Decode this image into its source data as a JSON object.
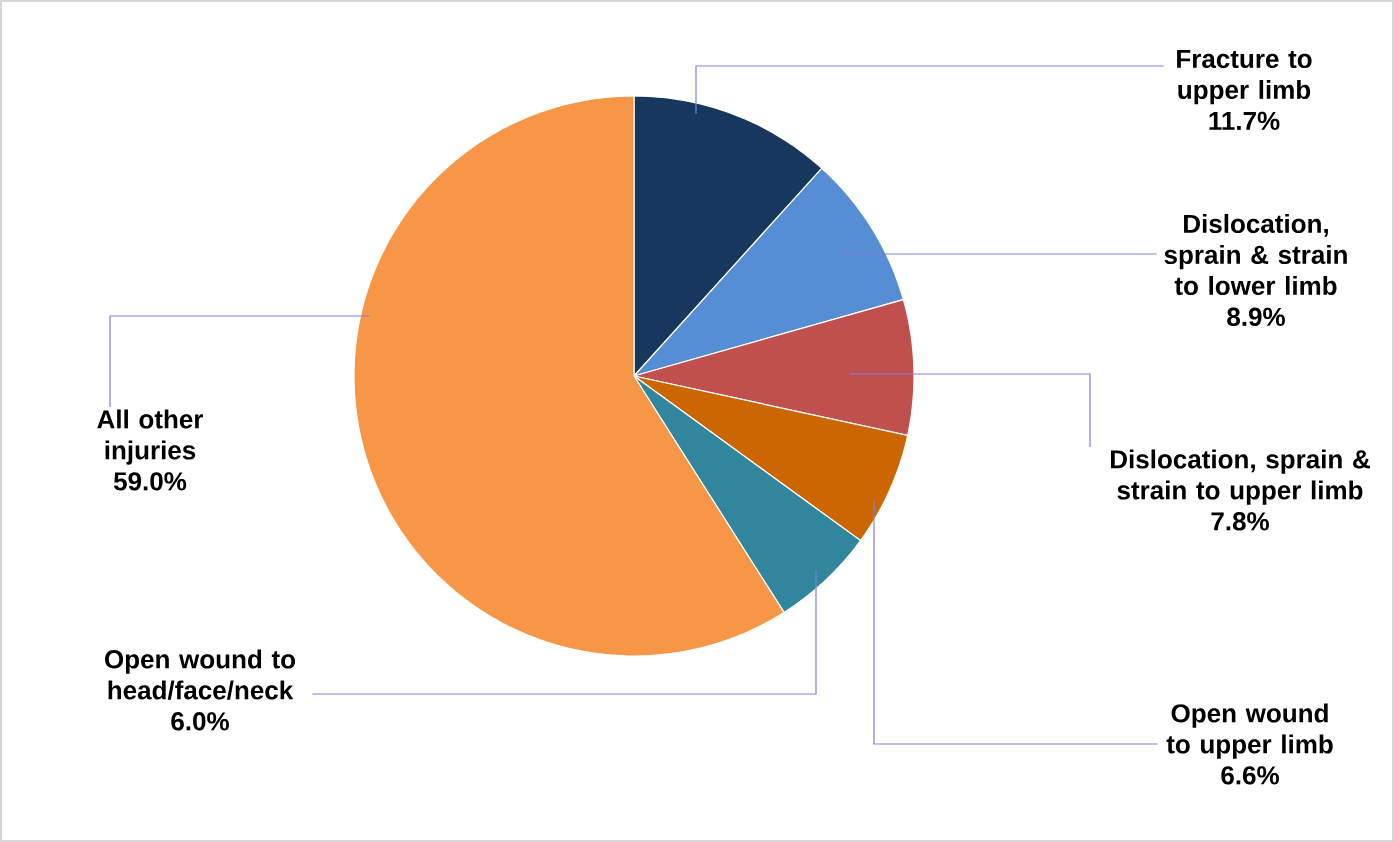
{
  "chart_data": {
    "type": "pie",
    "categories": [
      "Fracture to upper limb",
      "Dislocation, sprain & strain to lower limb",
      "Dislocation, sprain & strain to upper limb",
      "Open wound to upper limb",
      "Open wound to head/face/neck",
      "All other injuries"
    ],
    "values": [
      11.7,
      8.9,
      7.8,
      6.6,
      6.0,
      59.0
    ],
    "colors": [
      "#17375e",
      "#558ed5",
      "#c0504d",
      "#cc6600",
      "#31859c",
      "#f79646"
    ],
    "data_labels": true,
    "value_labels": [
      "11.7%",
      "8.9%",
      "7.8%",
      "6.6%",
      "6.0%",
      "59.0%"
    ]
  }
}
